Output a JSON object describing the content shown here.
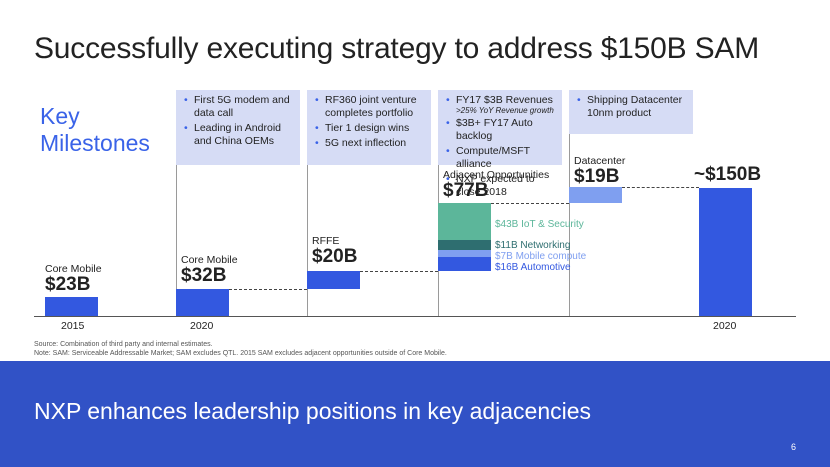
{
  "slide": {
    "title": "Successfully executing strategy to address $150B SAM",
    "key_milestones_line1": "Key",
    "key_milestones_line2": "Milestones",
    "tagline": "NXP enhances leadership positions in key adjacencies",
    "page_number": "6",
    "source_note": "Source: Combination of third party and internal estimates.",
    "note": "Note: SAM: Serviceable Addressable Market; SAM excludes QTL. 2015 SAM excludes adjacent opportunities outside of Core Mobile."
  },
  "milestones": [
    {
      "items": [
        "First 5G modem and data call",
        "Leading in Android and China OEMs"
      ]
    },
    {
      "items": [
        "RF360 joint venture completes portfolio",
        "Tier 1 design wins",
        "5G next inflection"
      ]
    },
    {
      "items": [
        "FY17 $3B Revenues",
        "$3B+ FY17 Auto backlog",
        "Compute/MSFT alliance",
        "NXP expected to close 2018"
      ],
      "sub_note": ">25% YoY Revenue growth"
    },
    {
      "items": [
        "Shipping Datacenter 10nm product"
      ]
    }
  ],
  "chart_data": {
    "type": "bar",
    "units": "$B",
    "bars": [
      {
        "category": "Core Mobile",
        "value": 23,
        "value_label": "$23B",
        "x_label": "2015",
        "base": 0
      },
      {
        "category": "Core Mobile",
        "value": 32,
        "value_label": "$32B",
        "x_label": "2020",
        "base": 0
      },
      {
        "category": "RFFE",
        "value": 20,
        "value_label": "$20B",
        "base": 32
      },
      {
        "category": "Adjacent Opportunities",
        "value": 77,
        "value_label": "$77B",
        "base": 52,
        "segments": [
          {
            "name": "$16B Automotive",
            "value": 16,
            "color": "#3358e0"
          },
          {
            "name": "$7B Mobile compute",
            "value": 7,
            "color": "#7f9ff0"
          },
          {
            "name": "$11B Networking",
            "value": 11,
            "color": "#2e6e70"
          },
          {
            "name": "$43B IoT & Security",
            "value": 43,
            "color": "#5cb69a"
          }
        ]
      },
      {
        "category": "Datacenter",
        "value": 19,
        "value_label": "$19B",
        "base": 129,
        "color": "#7f9ff0"
      },
      {
        "category": "",
        "value": 150,
        "value_label": "~$150B",
        "x_label": "2020",
        "base": 0
      }
    ]
  }
}
